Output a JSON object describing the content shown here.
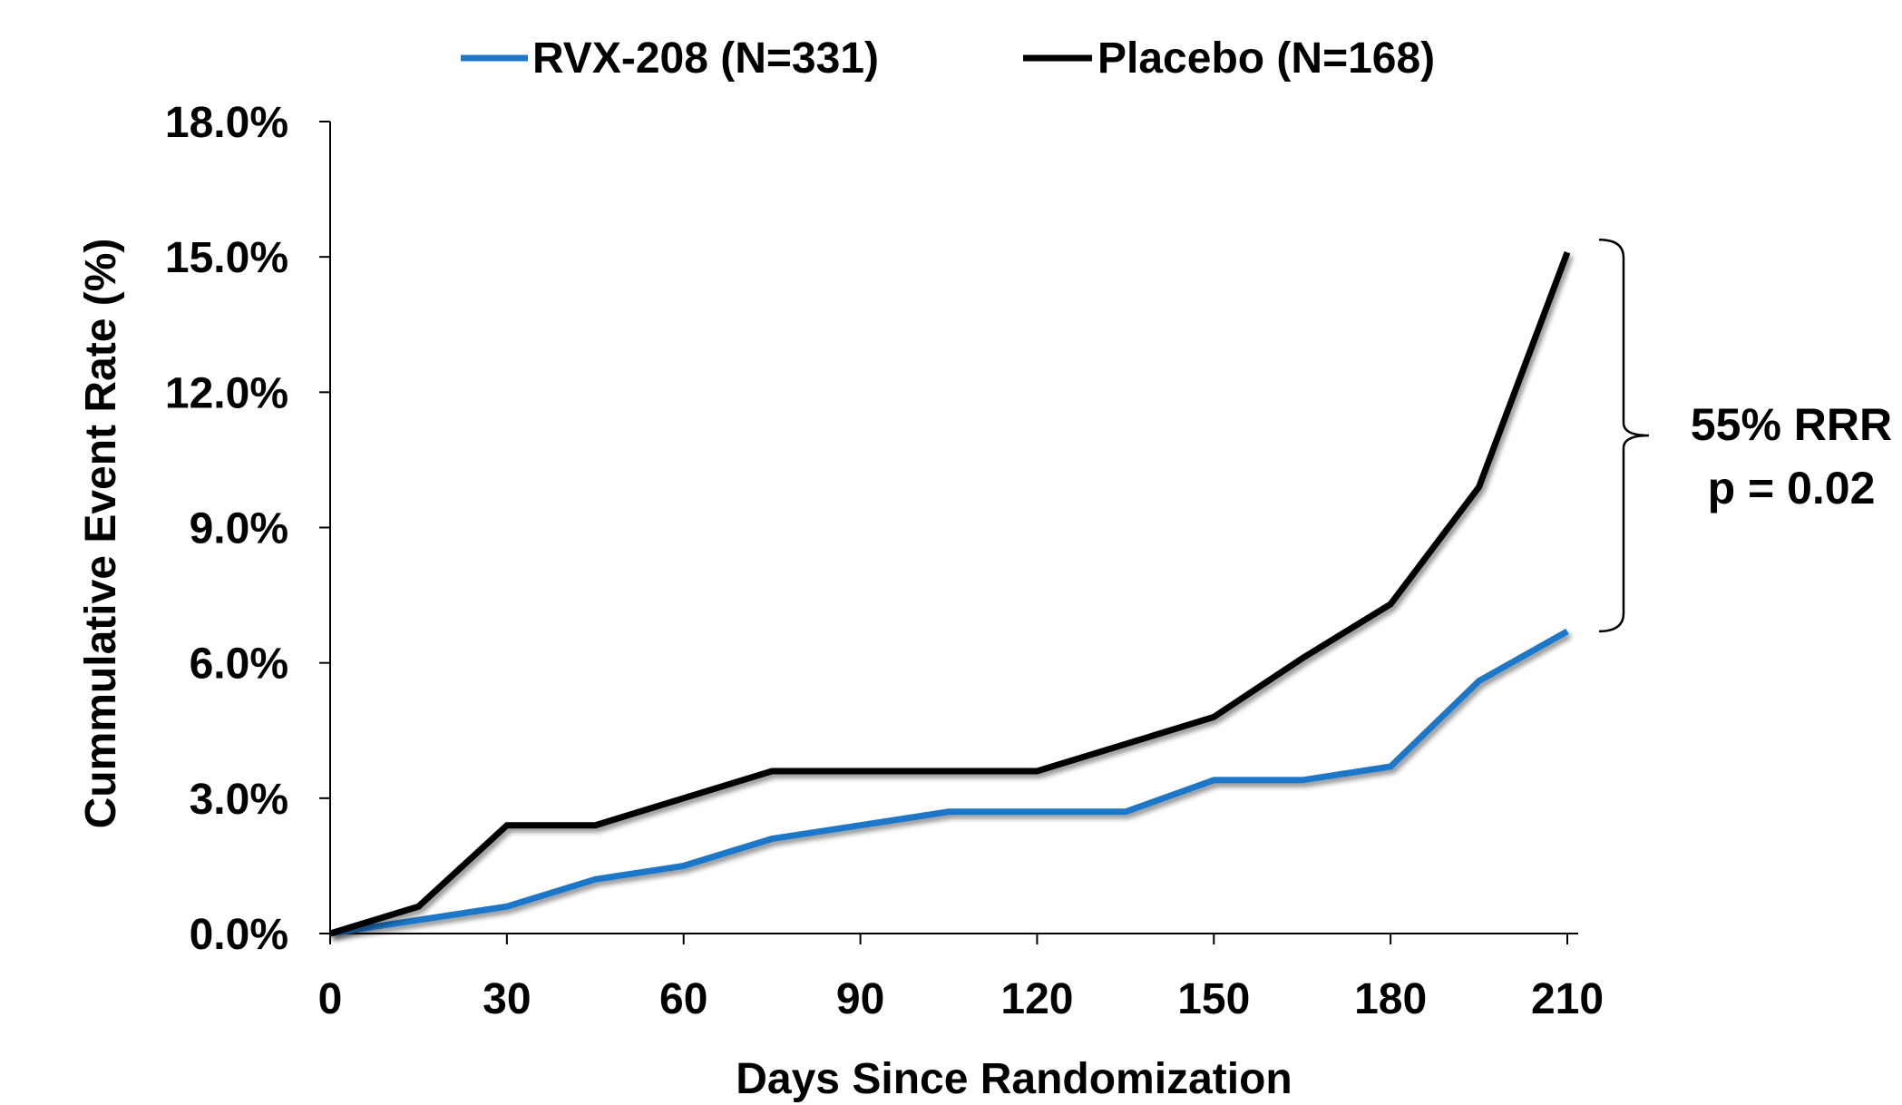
{
  "chart_data": {
    "type": "line",
    "title": "",
    "xlabel": "Days Since Randomization",
    "ylabel": "Cummulative Event Rate (%)",
    "xlim": [
      0,
      210
    ],
    "ylim": [
      0,
      18
    ],
    "x_ticks": [
      0,
      30,
      60,
      90,
      120,
      150,
      180,
      210
    ],
    "x_tick_labels": [
      "0",
      "30",
      "60",
      "90",
      "120",
      "150",
      "180",
      "210"
    ],
    "y_ticks": [
      0,
      3,
      6,
      9,
      12,
      15,
      18
    ],
    "y_tick_labels": [
      "0.0%",
      "3.0%",
      "6.0%",
      "9.0%",
      "12.0%",
      "15.0%",
      "18.0%"
    ],
    "grid": false,
    "legend_position": "top",
    "x": [
      0,
      15,
      30,
      45,
      60,
      75,
      90,
      105,
      120,
      135,
      150,
      165,
      180,
      195,
      210
    ],
    "series": [
      {
        "name": "RVX-208 (N=331)",
        "color": "#1F77C8",
        "values": [
          0.0,
          0.3,
          0.6,
          1.2,
          1.5,
          2.1,
          2.4,
          2.7,
          2.7,
          2.7,
          3.4,
          3.4,
          3.7,
          5.6,
          6.7
        ]
      },
      {
        "name": "Placebo (N=168)",
        "color": "#000000",
        "values": [
          0.0,
          0.6,
          2.4,
          2.4,
          3.0,
          3.6,
          3.6,
          3.6,
          3.6,
          4.2,
          4.8,
          6.1,
          7.3,
          9.9,
          15.1
        ]
      }
    ],
    "annotation": {
      "line1": "55% RRR",
      "line2": "p = 0.02",
      "bracket_from": 6.7,
      "bracket_to": 15.1
    }
  }
}
